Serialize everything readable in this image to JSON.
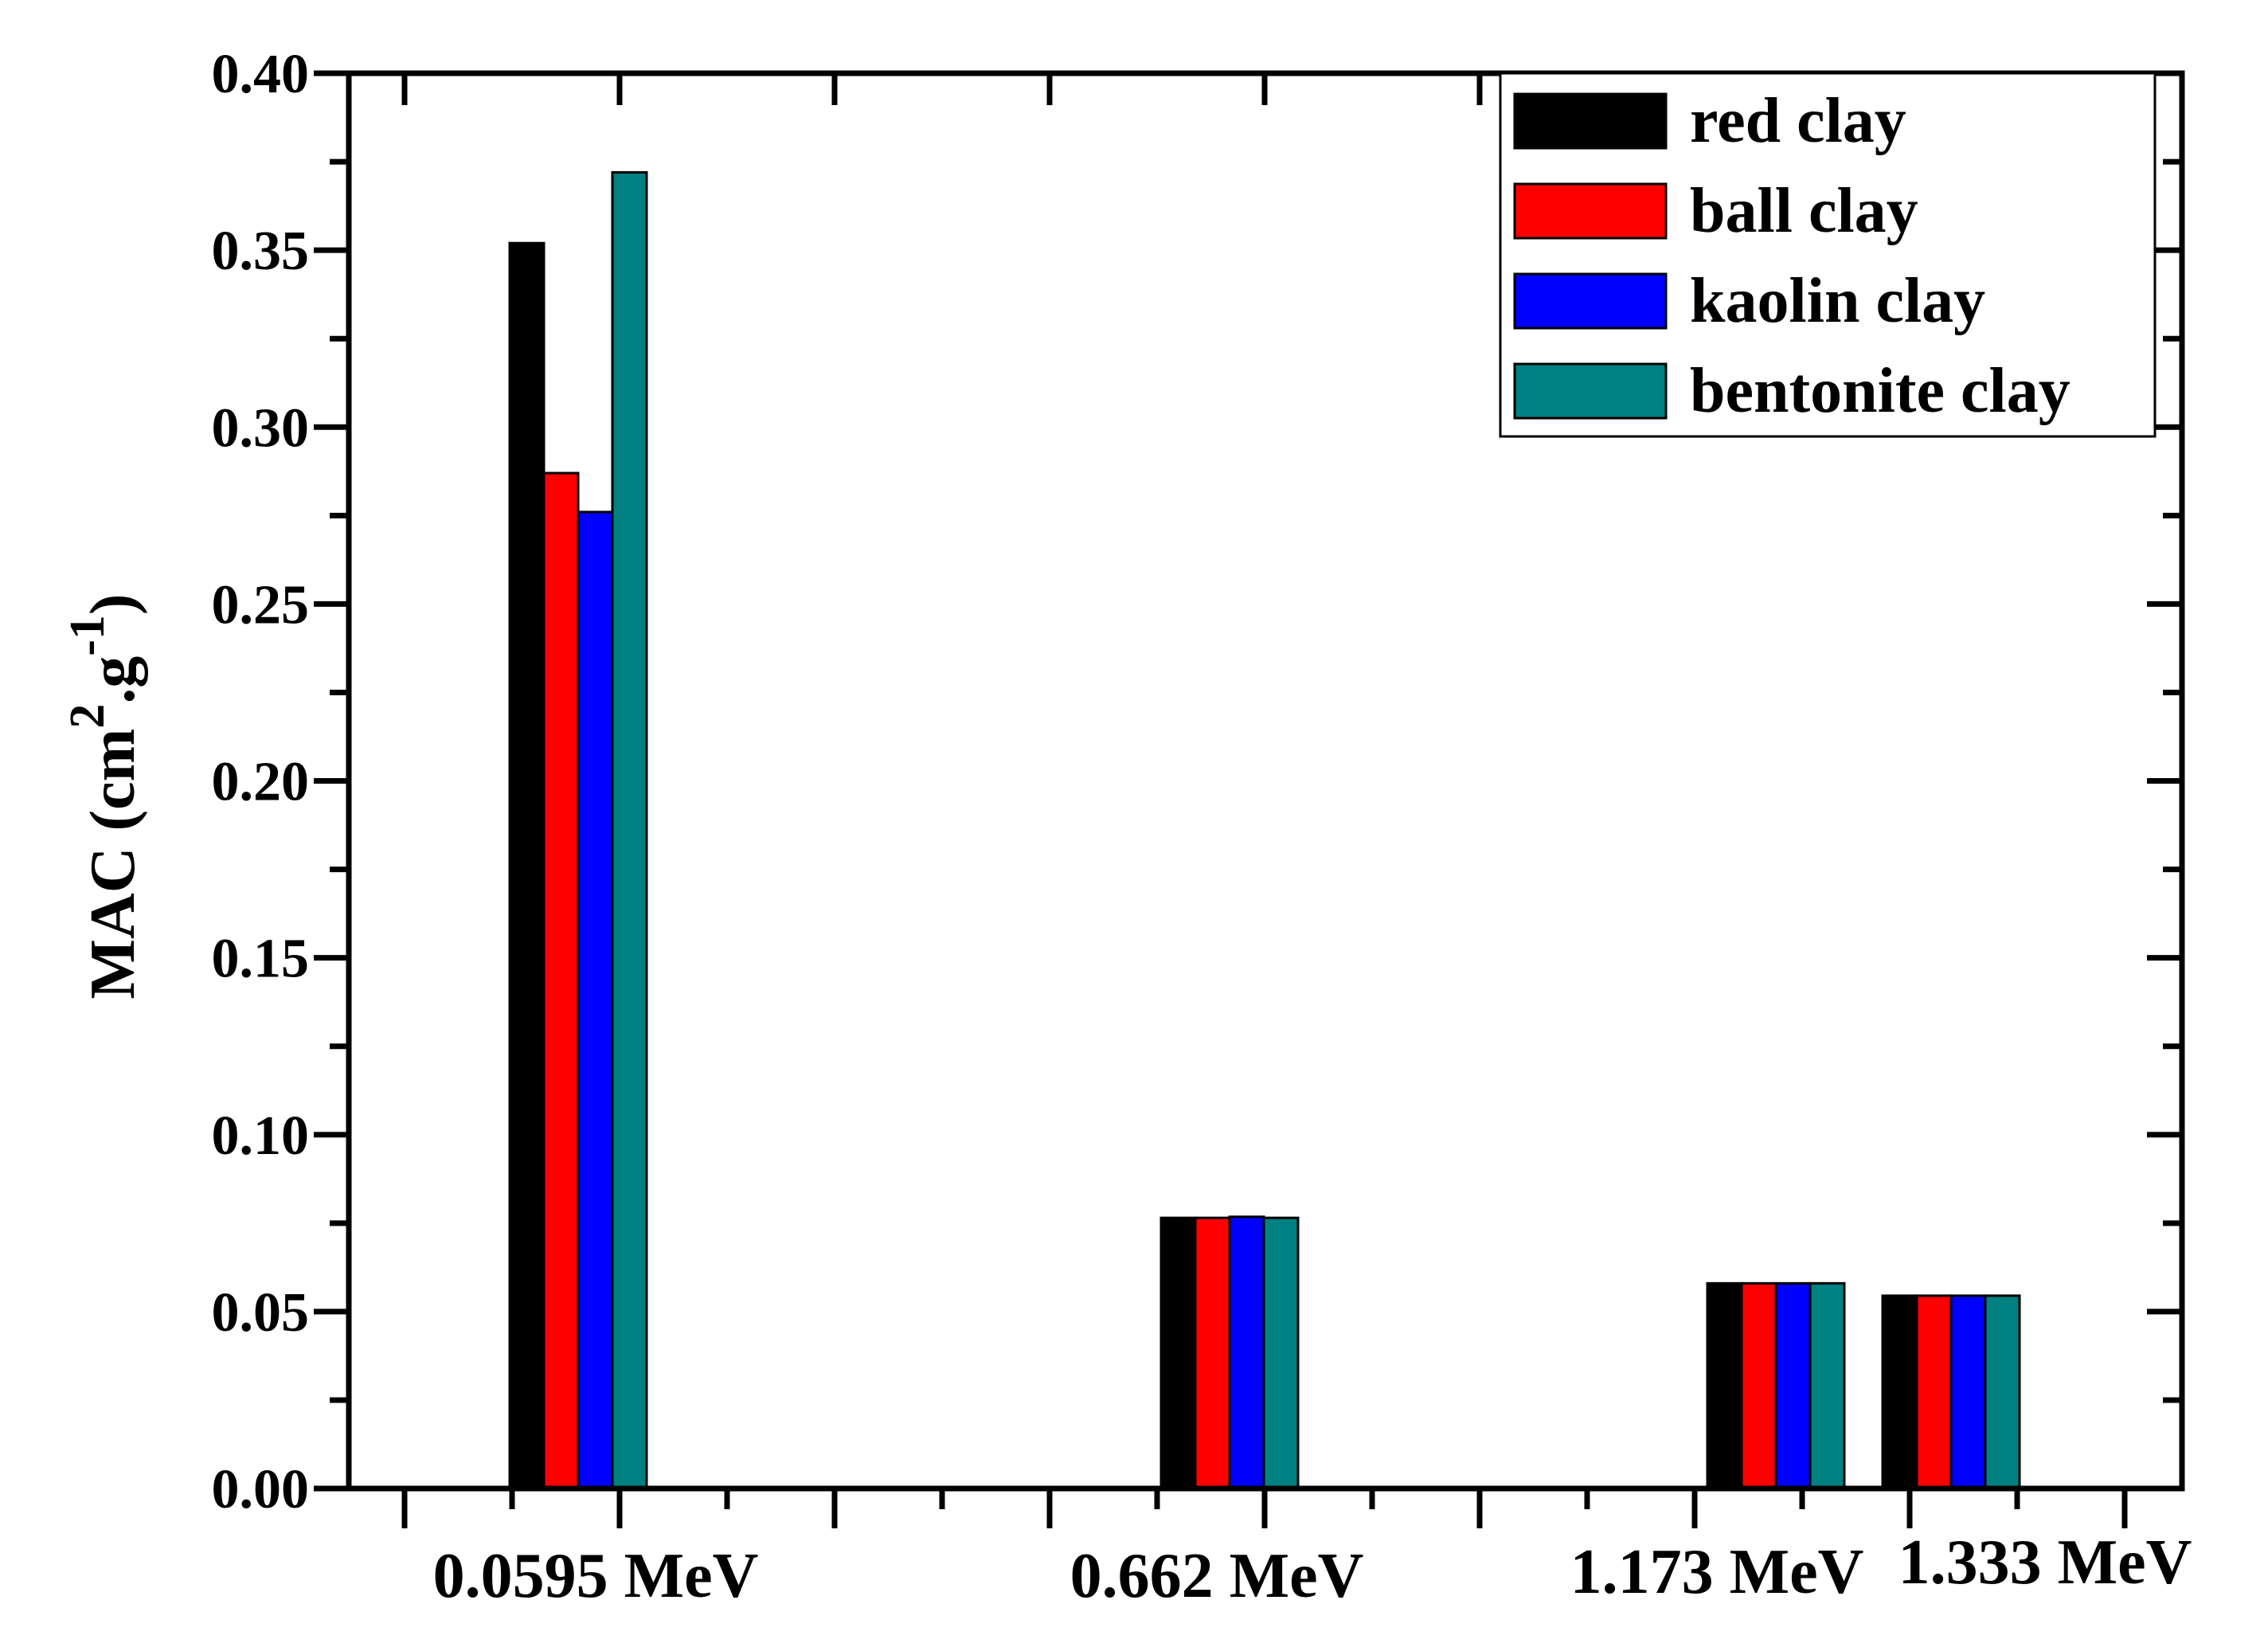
{
  "chart_data": {
    "type": "bar",
    "categories": [
      "0.0595 MeV",
      "0.662 MeV",
      "1.173 MeV",
      "1.333 MeV"
    ],
    "series": [
      {
        "name": "red clay",
        "color": "#000000",
        "values": [
          0.352,
          0.0765,
          0.058,
          0.0545
        ]
      },
      {
        "name": "ball clay",
        "color": "#ff0000",
        "values": [
          0.287,
          0.0765,
          0.058,
          0.0545
        ]
      },
      {
        "name": "kaolin clay",
        "color": "#0000ff",
        "values": [
          0.276,
          0.0768,
          0.058,
          0.0545
        ]
      },
      {
        "name": "bentonite clay",
        "color": "#008080",
        "values": [
          0.372,
          0.0765,
          0.058,
          0.0545
        ]
      }
    ],
    "ylim": [
      0,
      0.4
    ],
    "yticks": [
      "0.00",
      "0.05",
      "0.10",
      "0.15",
      "0.20",
      "0.25",
      "0.30",
      "0.35",
      "0.40"
    ],
    "ylabel": {
      "main": "MAC (cm",
      "sup1": "2",
      "mid": ".g",
      "sup2": "-1",
      "end": ")"
    },
    "xlabel": "",
    "title": "",
    "legend_position": "top-right",
    "grid": false
  }
}
